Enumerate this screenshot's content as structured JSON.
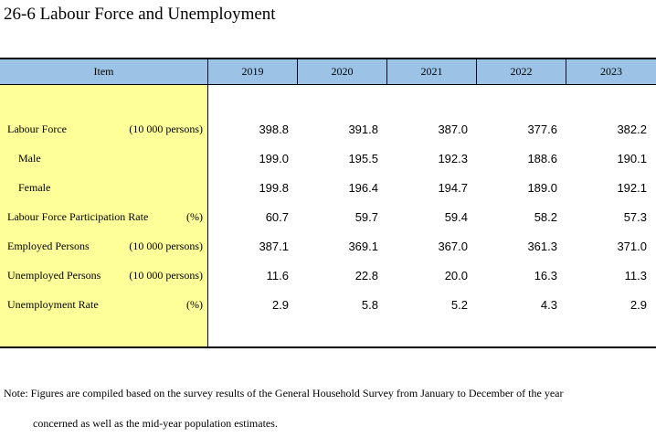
{
  "title": "26-6  Labour Force and Unemployment",
  "table": {
    "item_header": "Item",
    "years": [
      "2019",
      "2020",
      "2021",
      "2022",
      "2023"
    ],
    "rows": [
      {
        "label": "Labour Force",
        "unit": "(10 000 persons)",
        "indent": false,
        "values": [
          "398.8",
          "391.8",
          "387.0",
          "377.6",
          "382.2"
        ]
      },
      {
        "label": "Male",
        "unit": "",
        "indent": true,
        "values": [
          "199.0",
          "195.5",
          "192.3",
          "188.6",
          "190.1"
        ]
      },
      {
        "label": "Female",
        "unit": "",
        "indent": true,
        "values": [
          "199.8",
          "196.4",
          "194.7",
          "189.0",
          "192.1"
        ]
      },
      {
        "label": "Labour Force Participation Rate",
        "unit": "(%)",
        "indent": false,
        "values": [
          "60.7",
          "59.7",
          "59.4",
          "58.2",
          "57.3"
        ]
      },
      {
        "label": "Employed Persons",
        "unit": "(10 000 persons)",
        "indent": false,
        "values": [
          "387.1",
          "369.1",
          "367.0",
          "361.3",
          "371.0"
        ]
      },
      {
        "label": "Unemployed Persons",
        "unit": "(10 000 persons)",
        "indent": false,
        "values": [
          "11.6",
          "22.8",
          "20.0",
          "16.3",
          "11.3"
        ]
      },
      {
        "label": "Unemployment Rate",
        "unit": "(%)",
        "indent": false,
        "values": [
          "2.9",
          "5.8",
          "5.2",
          "4.3",
          "2.9"
        ]
      }
    ]
  },
  "note": {
    "line1": "Note: Figures are compiled based on the survey results of the General Household Survey from January to December of the year",
    "line2": "concerned as well as the mid-year population estimates."
  }
}
